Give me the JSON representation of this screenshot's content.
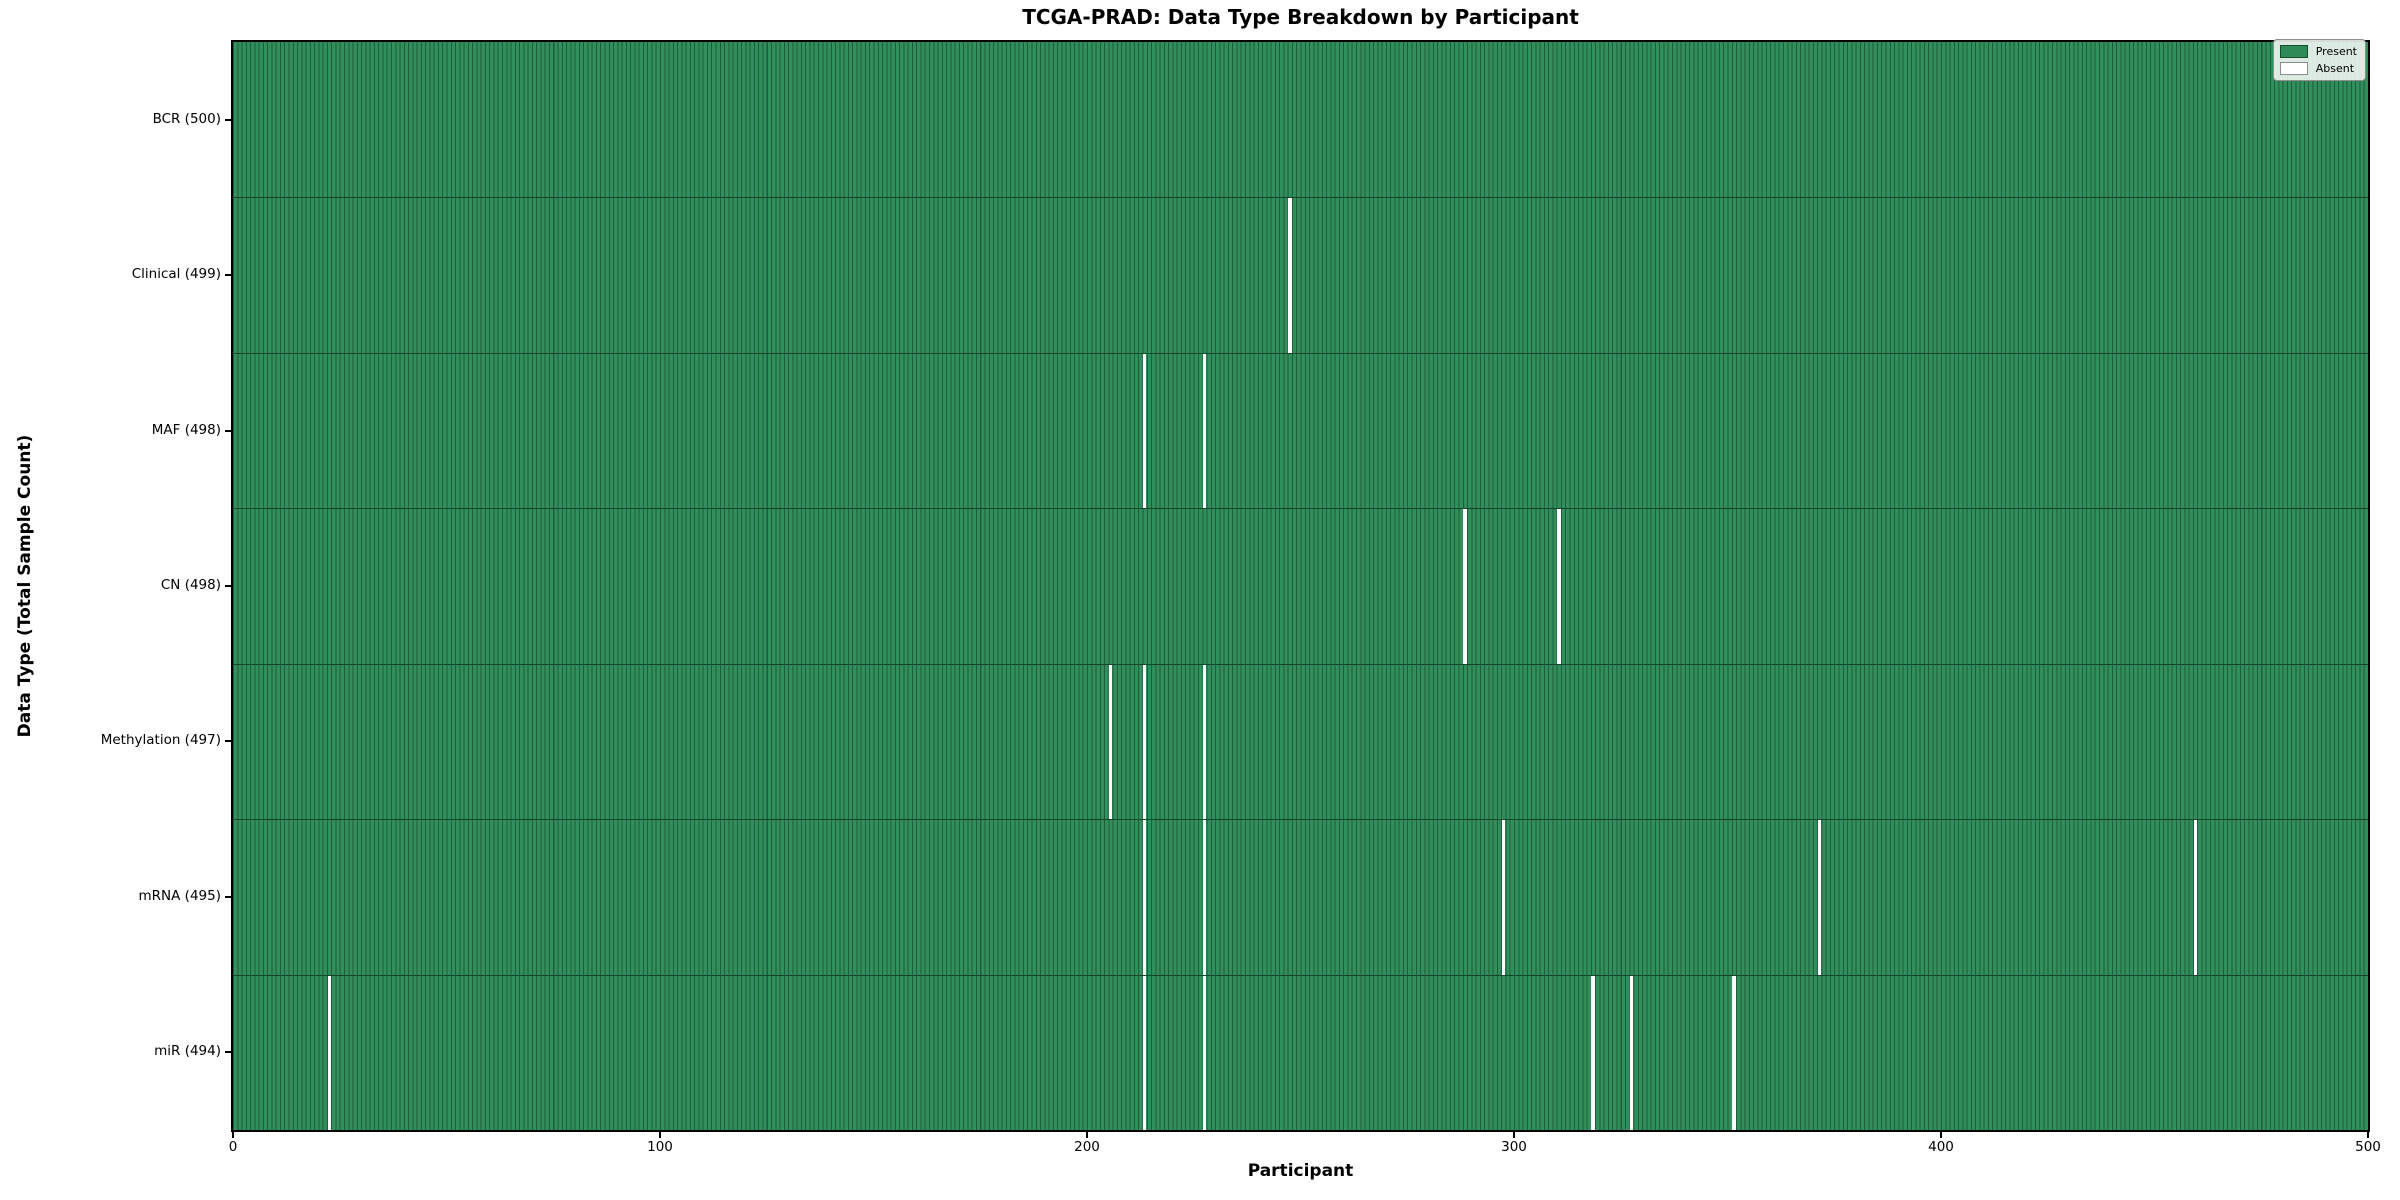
{
  "chart_data": {
    "type": "heatmap",
    "title": "TCGA-PRAD: Data Type Breakdown by Participant",
    "xlabel": "Participant",
    "ylabel": "Data Type (Total Sample Count)",
    "x_range": [
      0,
      500
    ],
    "n_participants": 500,
    "x_ticks": [
      0,
      100,
      200,
      300,
      400,
      500
    ],
    "grid": false,
    "legend_position": "upper-right",
    "legend": [
      {
        "label": "Present",
        "color": "#2e8b57"
      },
      {
        "label": "Absent",
        "color": "#ffffff"
      }
    ],
    "rows": [
      {
        "label": "BCR (500)",
        "data_type": "BCR",
        "total": 500,
        "absent_participants": []
      },
      {
        "label": "Clinical (499)",
        "data_type": "Clinical",
        "total": 499,
        "absent_participants": [
          247
        ]
      },
      {
        "label": "MAF (498)",
        "data_type": "MAF",
        "total": 498,
        "absent_participants": [
          213,
          227
        ]
      },
      {
        "label": "CN (498)",
        "data_type": "CN",
        "total": 498,
        "absent_participants": [
          288,
          310
        ]
      },
      {
        "label": "Methylation (497)",
        "data_type": "Methylation",
        "total": 497,
        "absent_participants": [
          205,
          213,
          227
        ]
      },
      {
        "label": "mRNA (495)",
        "data_type": "mRNA",
        "total": 495,
        "absent_participants": [
          213,
          227,
          297,
          371,
          459
        ]
      },
      {
        "label": "miR (494)",
        "data_type": "miR",
        "total": 494,
        "absent_participants": [
          22,
          213,
          227,
          318,
          327,
          351
        ]
      }
    ],
    "colors": {
      "present": "#2e8b57",
      "present_fill": "#318f5b",
      "cell_edge": "#1e5c3e",
      "row_divider": "#14452c",
      "absent": "#ffffff",
      "axis": "#000000"
    }
  }
}
